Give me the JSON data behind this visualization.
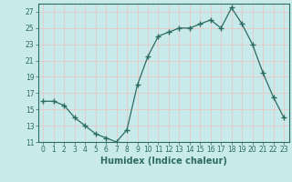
{
  "x": [
    0,
    1,
    2,
    3,
    4,
    5,
    6,
    7,
    8,
    9,
    10,
    11,
    12,
    13,
    14,
    15,
    16,
    17,
    18,
    19,
    20,
    21,
    22,
    23
  ],
  "y": [
    16,
    16,
    15.5,
    14,
    13,
    12,
    11.5,
    11,
    12.5,
    18,
    21.5,
    24,
    24.5,
    25,
    25,
    25.5,
    26,
    25,
    27.5,
    25.5,
    23,
    19.5,
    16.5,
    14
  ],
  "line_color": "#2d6b60",
  "marker": "+",
  "marker_size": 4,
  "bg_color": "#c8eaea",
  "grid_color_major": "#e8c8c8",
  "grid_color_minor": "#e8c8c8",
  "xlabel": "Humidex (Indice chaleur)",
  "ylim": [
    11,
    28
  ],
  "xlim": [
    -0.5,
    23.5
  ],
  "yticks": [
    11,
    13,
    15,
    17,
    19,
    21,
    23,
    25,
    27
  ],
  "xticks": [
    0,
    1,
    2,
    3,
    4,
    5,
    6,
    7,
    8,
    9,
    10,
    11,
    12,
    13,
    14,
    15,
    16,
    17,
    18,
    19,
    20,
    21,
    22,
    23
  ],
  "xtick_labels": [
    "0",
    "1",
    "2",
    "3",
    "4",
    "5",
    "6",
    "7",
    "8",
    "9",
    "10",
    "11",
    "12",
    "13",
    "14",
    "15",
    "16",
    "17",
    "18",
    "19",
    "20",
    "21",
    "22",
    "23"
  ],
  "ytick_labels": [
    "11",
    "13",
    "15",
    "17",
    "19",
    "21",
    "23",
    "25",
    "27"
  ],
  "tick_fontsize": 5.5,
  "xlabel_fontsize": 7
}
